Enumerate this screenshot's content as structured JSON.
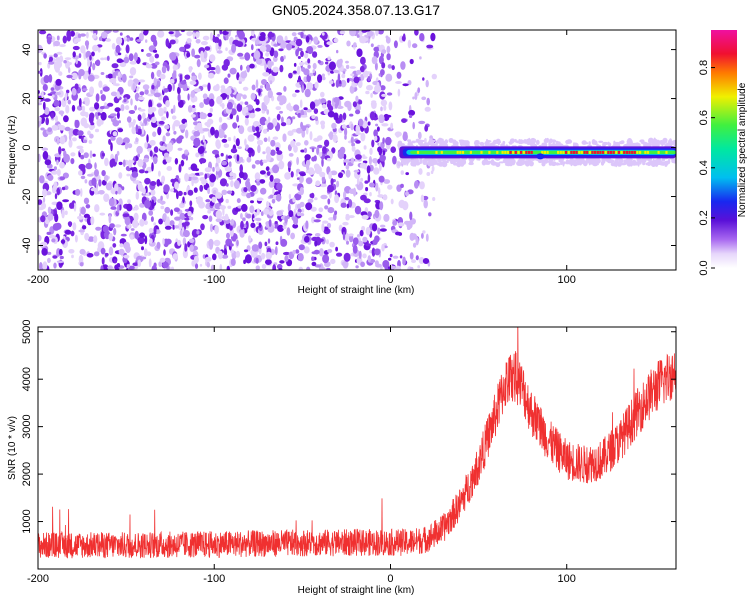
{
  "title": "GN05.2024.358.07.13.G17",
  "colors": {
    "scatter_purple": "#7a1fe0",
    "scatter_light": "#c9a8f5",
    "snr_line": "#f03030",
    "frame": "#000000"
  },
  "chart_data": [
    {
      "type": "heatmap",
      "title": "GN05.2024.358.07.13.G17",
      "xlabel": "Height of straight line (km)",
      "ylabel": "Frequency (Hz)",
      "xlim": [
        -200,
        162
      ],
      "ylim": [
        -50,
        48
      ],
      "xticks": [
        -200,
        -100,
        0,
        100
      ],
      "yticks": [
        -40,
        -20,
        0,
        20,
        40
      ],
      "x_tick_labels": [
        "-200",
        "-100",
        "0",
        "100"
      ],
      "y_tick_labels": [
        "-40",
        "-20",
        "0",
        "20",
        "40"
      ],
      "colorbar": {
        "label": "Normalized spectral amplitude",
        "range": [
          0,
          0.95
        ],
        "ticks": [
          0,
          0.2,
          0.4,
          0.6,
          0.8
        ],
        "tick_labels": [
          "0.0",
          "0.2",
          "0.4",
          "0.6",
          "0.8"
        ],
        "colormap": "rainbow (white-violet-blue-cyan-green-yellow-red-magenta)"
      },
      "features": [
        {
          "description": "scattered noise",
          "x_range": [
            -200,
            15
          ],
          "y_range": [
            -50,
            48
          ],
          "amplitude": "0.0-0.15"
        },
        {
          "description": "narrow signal line",
          "x_range": [
            5,
            162
          ],
          "frequency_hz": -2,
          "amplitude": "0.3-0.95",
          "peak_near_km": [
            70,
            125
          ]
        }
      ],
      "grid": false
    },
    {
      "type": "line",
      "xlabel": "Height of straight line (km)",
      "ylabel": "SNR (10 * v/v)",
      "xlim": [
        -200,
        162
      ],
      "ylim": [
        0,
        5100
      ],
      "xticks": [
        -200,
        -100,
        0,
        100
      ],
      "yticks": [
        1000,
        2000,
        3000,
        4000,
        5000
      ],
      "x_tick_labels": [
        "-200",
        "-100",
        "0",
        "100"
      ],
      "y_tick_labels": [
        "1000",
        "2000",
        "3000",
        "4000",
        "5000"
      ],
      "series_envelope": {
        "x": [
          -200,
          -150,
          -100,
          -50,
          0,
          10,
          20,
          30,
          40,
          50,
          60,
          65,
          70,
          75,
          80,
          90,
          100,
          110,
          120,
          130,
          140,
          150,
          162
        ],
        "y": [
          500,
          500,
          520,
          550,
          560,
          560,
          620,
          850,
          1400,
          2200,
          3300,
          3900,
          4100,
          3800,
          3300,
          2700,
          2300,
          2200,
          2300,
          2700,
          3300,
          3800,
          4200
        ],
        "noise_amplitude": 400
      },
      "grid": false
    }
  ]
}
